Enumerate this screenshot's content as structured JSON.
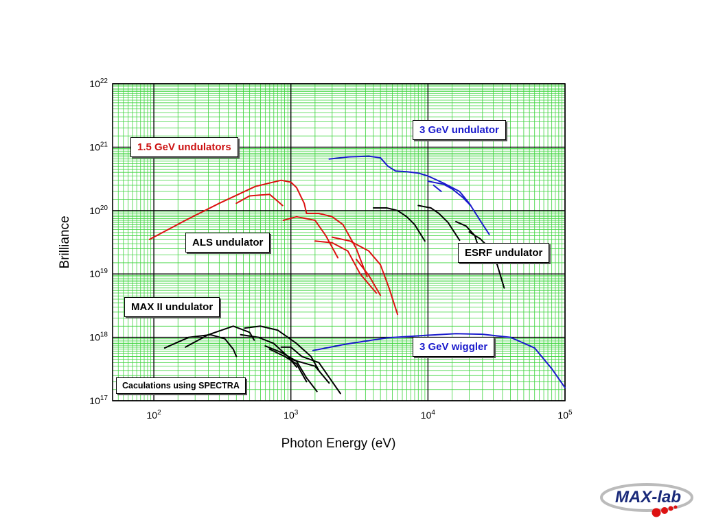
{
  "chart_data": {
    "type": "line",
    "xscale": "log",
    "yscale": "log",
    "xlim": [
      50,
      100000
    ],
    "ylim": [
      1e+17,
      1e+22
    ],
    "grid": true,
    "xlabel": "Photon Energy (eV)",
    "ylabel": "Brilliance",
    "xticks": [
      {
        "value": 100,
        "base": "10",
        "exp": "2"
      },
      {
        "value": 1000,
        "base": "10",
        "exp": "3"
      },
      {
        "value": 10000,
        "base": "10",
        "exp": "4"
      },
      {
        "value": 100000,
        "base": "10",
        "exp": "5"
      }
    ],
    "yticks": [
      {
        "value": 1e+17,
        "base": "10",
        "exp": "17"
      },
      {
        "value": 1e+18,
        "base": "10",
        "exp": "18"
      },
      {
        "value": 1e+19,
        "base": "10",
        "exp": "19"
      },
      {
        "value": 1e+20,
        "base": "10",
        "exp": "20"
      },
      {
        "value": 1e+21,
        "base": "10",
        "exp": "21"
      },
      {
        "value": 1e+22,
        "base": "10",
        "exp": "22"
      }
    ],
    "annotations": [
      {
        "id": "red",
        "text": "1.5 GeV undulators",
        "color": "#cc1111"
      },
      {
        "id": "blue-undulator",
        "text": "3 GeV undulator",
        "color": "#1a1acc"
      },
      {
        "id": "als",
        "text": "ALS undulator",
        "color": "#000000"
      },
      {
        "id": "esrf",
        "text": "ESRF undulator",
        "color": "#000000"
      },
      {
        "id": "maxii",
        "text": "MAX II undulator",
        "color": "#000000"
      },
      {
        "id": "wiggler",
        "text": "3 GeV wiggler",
        "color": "#1a1acc"
      },
      {
        "id": "spectra",
        "text": "Caculations using SPECTRA",
        "color": "#000000"
      }
    ],
    "series": [
      {
        "group": "1.5 GeV undulators",
        "color": "#dd1111",
        "points": [
          [
            93,
            3.5e+19
          ],
          [
            170,
            7e+19
          ],
          [
            300,
            1.3e+20
          ],
          [
            550,
            2.4e+20
          ],
          [
            850,
            3e+20
          ],
          [
            1000,
            2.8e+20
          ],
          [
            1100,
            2.3e+20
          ],
          [
            1250,
            1.3e+20
          ],
          [
            1300,
            9e+19
          ]
        ]
      },
      {
        "group": "1.5 GeV undulators",
        "color": "#dd1111",
        "points": [
          [
            400,
            1.3e+20
          ],
          [
            500,
            1.7e+20
          ],
          [
            700,
            1.8e+20
          ],
          [
            870,
            1.2e+20
          ]
        ]
      },
      {
        "group": "1.5 GeV undulators",
        "color": "#dd1111",
        "points": [
          [
            880,
            7e+19
          ],
          [
            1100,
            8e+19
          ],
          [
            1500,
            7e+19
          ],
          [
            1800,
            4e+19
          ],
          [
            2200,
            1.8e+19
          ]
        ]
      },
      {
        "group": "1.5 GeV undulators",
        "color": "#dd1111",
        "points": [
          [
            1300,
            9e+19
          ],
          [
            1600,
            9e+19
          ],
          [
            2000,
            8e+19
          ],
          [
            2400,
            6e+19
          ],
          [
            3000,
            2.5e+19
          ],
          [
            3600,
            9e+18
          ]
        ]
      },
      {
        "group": "1.5 GeV undulators",
        "color": "#dd1111",
        "points": [
          [
            1500,
            3.3e+19
          ],
          [
            2000,
            3.1e+19
          ],
          [
            2600,
            2.3e+19
          ],
          [
            3200,
            1e+19
          ],
          [
            4200,
            5e+18
          ]
        ]
      },
      {
        "group": "1.5 GeV undulators",
        "color": "#dd1111",
        "points": [
          [
            2000,
            3.8e+19
          ],
          [
            2700,
            3.3e+19
          ],
          [
            3700,
            2.3e+19
          ],
          [
            4500,
            1.4e+19
          ],
          [
            5200,
            6e+18
          ],
          [
            6000,
            2.3e+18
          ]
        ]
      },
      {
        "group": "1.5 GeV undulators",
        "color": "#dd1111",
        "points": [
          [
            3000,
            1.7e+19
          ],
          [
            3700,
            9.5e+18
          ],
          [
            4500,
            4.6e+18
          ]
        ]
      },
      {
        "group": "3 GeV undulator",
        "color": "#1a1acc",
        "points": [
          [
            1900,
            6.5e+20
          ],
          [
            2600,
            7e+20
          ],
          [
            3700,
            7.2e+20
          ],
          [
            4500,
            6.8e+20
          ],
          [
            5100,
            5e+20
          ],
          [
            5800,
            4.2e+20
          ],
          [
            7000,
            4.1e+20
          ],
          [
            8500,
            3.9e+20
          ],
          [
            10000,
            3.5e+20
          ],
          [
            13000,
            2.7e+20
          ],
          [
            17000,
            2e+20
          ],
          [
            20000,
            1.3e+20
          ],
          [
            24000,
            7e+19
          ],
          [
            28000,
            4.2e+19
          ]
        ]
      },
      {
        "group": "3 GeV undulator",
        "color": "#1a1acc",
        "points": [
          [
            10000,
            2.9e+20
          ],
          [
            13000,
            2.6e+20
          ],
          [
            15000,
            2.2e+20
          ],
          [
            18000,
            1.6e+20
          ],
          [
            20500,
            1.2e+20
          ]
        ]
      },
      {
        "group": "3 GeV undulator",
        "color": "#1a1acc",
        "points": [
          [
            11000,
            2.5e+20
          ],
          [
            12500,
            2e+20
          ]
        ]
      },
      {
        "group": "ALS undulator",
        "color": "#000000",
        "points": [
          [
            170,
            7e+17
          ],
          [
            250,
            1.1e+18
          ],
          [
            380,
            1.5e+18
          ],
          [
            500,
            1.2e+18
          ],
          [
            540,
            9e+17
          ]
        ]
      },
      {
        "group": "ALS undulator",
        "color": "#000000",
        "points": [
          [
            460,
            1.4e+18
          ],
          [
            600,
            1.5e+18
          ],
          [
            800,
            1.3e+18
          ],
          [
            1100,
            8e+17
          ],
          [
            1400,
            5e+17
          ],
          [
            1600,
            3e+17
          ]
        ]
      },
      {
        "group": "ALS undulator",
        "color": "#000000",
        "points": [
          [
            850,
            7e+17
          ],
          [
            1000,
            7e+17
          ],
          [
            1200,
            5e+17
          ],
          [
            1600,
            4e+17
          ],
          [
            2000,
            2e+17
          ],
          [
            2300,
            1.3e+17
          ]
        ]
      },
      {
        "group": "ALS undulator",
        "color": "#000000",
        "points": [
          [
            1000,
            4.5e+17
          ],
          [
            1500,
            3.5e+17
          ],
          [
            1900,
            1.9e+17
          ]
        ]
      },
      {
        "group": "ESRF undulator",
        "color": "#000000",
        "points": [
          [
            4000,
            1.1e+20
          ],
          [
            5000,
            1.1e+20
          ],
          [
            6000,
            1e+20
          ],
          [
            7000,
            8e+19
          ],
          [
            8000,
            6e+19
          ],
          [
            9500,
            3.3e+19
          ]
        ]
      },
      {
        "group": "ESRF undulator",
        "color": "#000000",
        "points": [
          [
            8500,
            1.2e+20
          ],
          [
            10500,
            1.1e+20
          ],
          [
            12000,
            9e+19
          ],
          [
            14000,
            6.5e+19
          ],
          [
            17000,
            3.4e+19
          ]
        ]
      },
      {
        "group": "ESRF undulator",
        "color": "#000000",
        "points": [
          [
            16000,
            6.7e+19
          ],
          [
            19000,
            5.7e+19
          ],
          [
            22000,
            4e+19
          ],
          [
            24000,
            2.2e+19
          ]
        ]
      },
      {
        "group": "ESRF undulator",
        "color": "#000000",
        "points": [
          [
            20000,
            4.6e+19
          ],
          [
            24000,
            3.6e+19
          ],
          [
            28000,
            2.6e+19
          ],
          [
            32000,
            1.4e+19
          ],
          [
            36000,
            6e+18
          ]
        ]
      },
      {
        "group": "MAX II undulator",
        "color": "#000000",
        "points": [
          [
            120,
            6.8e+17
          ],
          [
            180,
            1e+18
          ],
          [
            260,
            1.1e+18
          ],
          [
            330,
            9.5e+17
          ],
          [
            380,
            6.5e+17
          ],
          [
            400,
            5e+17
          ]
        ]
      },
      {
        "group": "MAX II undulator",
        "color": "#000000",
        "points": [
          [
            430,
            1.1e+18
          ],
          [
            580,
            1e+18
          ],
          [
            750,
            8e+17
          ],
          [
            950,
            5e+17
          ],
          [
            1100,
            3.4e+17
          ]
        ]
      },
      {
        "group": "MAX II undulator",
        "color": "#000000",
        "points": [
          [
            650,
            7.3e+17
          ],
          [
            850,
            5.8e+17
          ],
          [
            1100,
            4.2e+17
          ],
          [
            1300,
            2.3e+17
          ],
          [
            1550,
            1.4e+17
          ]
        ]
      },
      {
        "group": "MAX II undulator",
        "color": "#000000",
        "points": [
          [
            700,
            6.5e+17
          ],
          [
            900,
            5e+17
          ],
          [
            1100,
            3.8e+17
          ],
          [
            1300,
            2e+17
          ]
        ]
      },
      {
        "group": "3 GeV wiggler",
        "color": "#1a1acc",
        "points": [
          [
            1450,
            6.2e+17
          ],
          [
            2500,
            7.8e+17
          ],
          [
            5000,
            9.8e+17
          ],
          [
            10000,
            1.08e+18
          ],
          [
            16000,
            1.14e+18
          ],
          [
            25000,
            1.12e+18
          ],
          [
            40000,
            1e+18
          ],
          [
            60000,
            6.8e+17
          ],
          [
            80000,
            3.2e+17
          ],
          [
            100000,
            1.6e+17
          ]
        ]
      }
    ]
  },
  "logo": {
    "text": "MAX-lab"
  }
}
